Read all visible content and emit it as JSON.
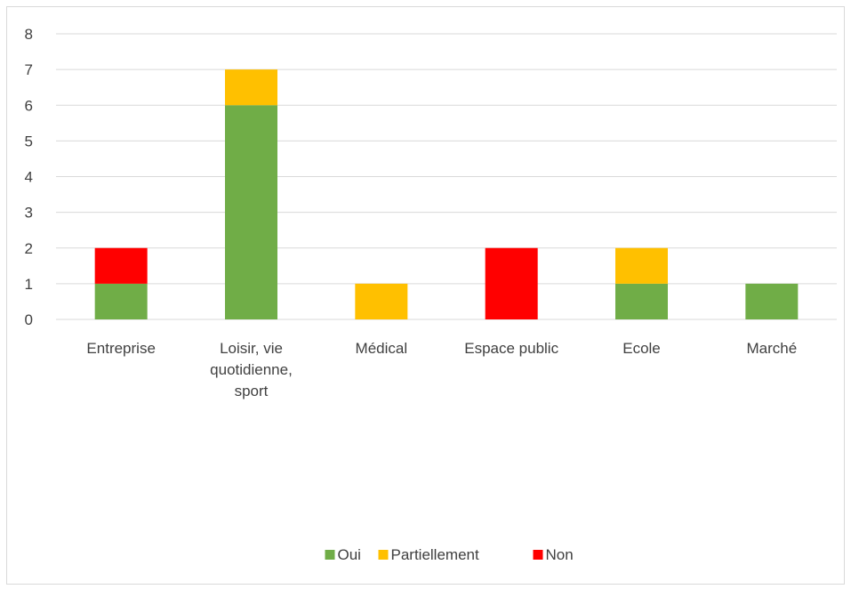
{
  "chart_data": {
    "type": "bar",
    "stacked": true,
    "categories": [
      [
        "Entreprise"
      ],
      [
        "Loisir, vie",
        "quotidienne,",
        "sport"
      ],
      [
        "Médical"
      ],
      [
        "Espace public"
      ],
      [
        "Ecole"
      ],
      [
        "Marché"
      ]
    ],
    "series": [
      {
        "name": "Oui",
        "color": "#70ad47",
        "values": [
          1,
          6,
          0,
          0,
          1,
          1
        ]
      },
      {
        "name": "Partiellement",
        "color": "#ffc000",
        "values": [
          0,
          1,
          1,
          0,
          1,
          0
        ]
      },
      {
        "name": "Non",
        "color": "#ff0000",
        "values": [
          1,
          0,
          0,
          2,
          0,
          0
        ]
      }
    ],
    "ylim": [
      0,
      8
    ],
    "yticks": [
      "0",
      "1",
      "2",
      "3",
      "4",
      "5",
      "6",
      "7",
      "8"
    ],
    "grid": true,
    "legend_position": "bottom",
    "gridline_color": "#d9d9d9",
    "text_color": "#404040"
  }
}
